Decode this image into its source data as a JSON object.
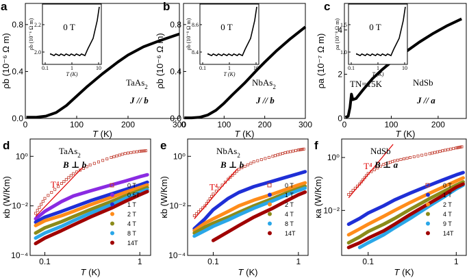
{
  "figure": {
    "panels_top": [
      {
        "letter": "a",
        "material": "TaAs",
        "sub": "2",
        "direction": "J // b",
        "ylabel": "ρb (10⁻⁶ Ω m)",
        "xlabel": "T (K)",
        "xticks": [
          "0",
          "100",
          "200",
          "300"
        ],
        "yticks": [
          "0.0",
          "0.4",
          "0.8"
        ],
        "inset": {
          "field": "0 T",
          "ylabel": "ρb (10⁻⁶ Ω m)",
          "xticks": [
            "0.1",
            "1",
            "10"
          ],
          "yticks": [
            "2.0",
            "2.2"
          ],
          "xlabel": "T (K)"
        }
      },
      {
        "letter": "b",
        "material": "NbAs",
        "sub": "2",
        "direction": "J // b",
        "ylabel": "ρb (10⁻⁶ Ω m)",
        "xlabel": "T (K)",
        "xticks": [
          "0",
          "100",
          "200",
          "300"
        ],
        "yticks": [
          "0.0",
          "0.4",
          "0.8"
        ],
        "inset": {
          "field": "0 T",
          "ylabel": "ρb (10⁻⁹ Ω m)",
          "xticks": [
            "0.1",
            "1",
            "10"
          ],
          "yticks": [
            "8.4",
            "8.6"
          ],
          "xlabel": "T (K)"
        }
      },
      {
        "letter": "c",
        "material": "NdSb",
        "sub": "",
        "direction": "J // a",
        "ylabel": "ρa (10⁻⁷ Ω m)",
        "xlabel": "T (K)",
        "xticks": [
          "0",
          "100",
          "200"
        ],
        "yticks": [
          "0",
          "2",
          "4"
        ],
        "annotation": "TN=15K",
        "inset": {
          "field": "0 T",
          "ylabel": "ρa (10⁻⁸ Ω m)",
          "xticks": [
            "0.1",
            "1",
            "10"
          ],
          "yticks": [
            "1.0",
            "1.5"
          ],
          "xlabel": "T (K)"
        }
      }
    ],
    "panels_bottom": [
      {
        "letter": "d",
        "material": "TaAs",
        "sub": "2",
        "field_dir": "B ⊥ b",
        "ylabel": "κb (W/Km)",
        "xlabel": "T (K)",
        "power": "T⁴",
        "xticks": [
          "0.1",
          "1"
        ],
        "yticks": [
          "10⁰",
          "10⁻²",
          "10⁻⁴"
        ],
        "legend": [
          "0 T",
          "0.5T",
          "1 T",
          "2 T",
          "4 T",
          "8 T",
          "14T"
        ]
      },
      {
        "letter": "e",
        "material": "NbAs",
        "sub": "2",
        "field_dir": "B ⊥ b",
        "ylabel": "κb (W/Km)",
        "xlabel": "T (K)",
        "power": "T⁴",
        "xticks": [
          "0.1",
          "1"
        ],
        "yticks": [
          "10⁰",
          "10⁻²",
          "10⁻⁴"
        ],
        "legend": [
          "0 T",
          "1 T",
          "2 T",
          "4 T",
          "8 T",
          "14T"
        ]
      },
      {
        "letter": "f",
        "material": "NdSb",
        "sub": "",
        "field_dir": "B ⊥ a",
        "ylabel": "κa (W/Km)",
        "xlabel": "T (K)",
        "power": "T⁴",
        "xticks": [
          "0.1",
          "1"
        ],
        "yticks": [
          "10⁰",
          "10⁻²"
        ],
        "legend": [
          "0 T",
          "1 T",
          "2 T",
          "4 T",
          "9 T",
          "14T"
        ]
      }
    ],
    "colors": {
      "zero": "#c0392b",
      "purple": "#8a2be2",
      "blue": "#1f2fd6",
      "orange": "#ff8c1a",
      "olive": "#8b8b1a",
      "cyan": "#2aa7e8",
      "darkred": "#a00000",
      "red": "#e00000"
    }
  },
  "chart_data": [
    {
      "type": "line",
      "title": "TaAs2 J // b",
      "xlabel": "T (K)",
      "ylabel": "ρb (10⁻⁶ Ω m)",
      "xlim": [
        0,
        300
      ],
      "ylim": [
        0,
        1.0
      ],
      "x": [
        2,
        20,
        40,
        60,
        80,
        100,
        120,
        150,
        180,
        200,
        230,
        260,
        300
      ],
      "series": [
        {
          "name": "ρb",
          "values": [
            0.01,
            0.01,
            0.02,
            0.05,
            0.11,
            0.19,
            0.27,
            0.38,
            0.48,
            0.54,
            0.61,
            0.66,
            0.72
          ]
        }
      ]
    },
    {
      "type": "line",
      "title": "NbAs2 J // b",
      "xlabel": "T (K)",
      "ylabel": "ρb (10⁻⁶ Ω m)",
      "xlim": [
        0,
        300
      ],
      "ylim": [
        0,
        1.0
      ],
      "x": [
        2,
        20,
        40,
        60,
        80,
        100,
        120,
        150,
        180,
        200,
        230,
        260,
        300
      ],
      "series": [
        {
          "name": "ρb",
          "values": [
            0.005,
            0.005,
            0.01,
            0.03,
            0.07,
            0.13,
            0.2,
            0.3,
            0.41,
            0.48,
            0.58,
            0.67,
            0.78
          ]
        }
      ]
    },
    {
      "type": "line",
      "title": "NdSb J // a",
      "xlabel": "T (K)",
      "ylabel": "ρa (10⁻⁷ Ω m)",
      "xlim": [
        0,
        260
      ],
      "ylim": [
        0,
        5.2
      ],
      "x": [
        2,
        8,
        12,
        15,
        18,
        25,
        40,
        60,
        80,
        100,
        130,
        160,
        190,
        220,
        250
      ],
      "series": [
        {
          "name": "ρa",
          "values": [
            0.05,
            0.1,
            0.5,
            1.1,
            0.85,
            0.9,
            1.3,
            1.8,
            2.2,
            2.55,
            3.0,
            3.45,
            3.85,
            4.2,
            4.5
          ]
        }
      ]
    },
    {
      "type": "scatter",
      "title": "TaAs2 B ⊥ b",
      "xlabel": "T (K)",
      "ylabel": "κb (W/Km)",
      "xscale": "log",
      "yscale": "log",
      "xlim": [
        0.07,
        1.3
      ],
      "ylim": [
        0.0001,
        5
      ],
      "x": [
        0.08,
        0.1,
        0.15,
        0.2,
        0.3,
        0.5,
        0.7,
        1.0,
        1.2
      ],
      "series": [
        {
          "name": "0 T",
          "values": [
            0.005,
            0.02,
            0.08,
            0.2,
            0.45,
            0.9,
            1.3,
            1.6,
            1.7
          ]
        },
        {
          "name": "0.5T",
          "values": [
            0.003,
            0.006,
            0.015,
            0.025,
            0.04,
            0.07,
            0.1,
            0.15,
            0.18
          ]
        },
        {
          "name": "1 T",
          "values": [
            0.0022,
            0.0035,
            0.006,
            0.009,
            0.016,
            0.03,
            0.045,
            0.07,
            0.09
          ]
        },
        {
          "name": "2 T",
          "values": [
            0.0016,
            0.0025,
            0.004,
            0.006,
            0.011,
            0.022,
            0.035,
            0.055,
            0.07
          ]
        },
        {
          "name": "4 T",
          "values": [
            0.0008,
            0.0013,
            0.0023,
            0.0037,
            0.007,
            0.015,
            0.025,
            0.042,
            0.055
          ]
        },
        {
          "name": "8 T",
          "values": [
            0.0005,
            0.0008,
            0.0015,
            0.0025,
            0.005,
            0.011,
            0.02,
            0.035,
            0.045
          ]
        },
        {
          "name": "14T",
          "values": [
            0.0003,
            0.0005,
            0.001,
            0.0017,
            0.0035,
            0.008,
            0.015,
            0.028,
            0.038
          ]
        }
      ]
    },
    {
      "type": "scatter",
      "title": "NbAs2 B ⊥ b",
      "xlabel": "T (K)",
      "ylabel": "κb (W/Km)",
      "xscale": "log",
      "yscale": "log",
      "xlim": [
        0.05,
        1.3
      ],
      "ylim": [
        0.0001,
        5
      ],
      "x": [
        0.06,
        0.08,
        0.1,
        0.15,
        0.2,
        0.3,
        0.5,
        0.7,
        1.0,
        1.2
      ],
      "series": [
        {
          "name": "0 T",
          "values": [
            0.004,
            0.01,
            0.03,
            0.12,
            0.3,
            0.6,
            1.0,
            1.4,
            1.8,
            2.0
          ]
        },
        {
          "name": "1 T",
          "values": [
            0.0012,
            0.003,
            0.007,
            0.02,
            0.035,
            0.06,
            0.1,
            0.14,
            0.2,
            0.24
          ]
        },
        {
          "name": "2 T",
          "values": [
            0.001,
            0.002,
            0.003,
            0.006,
            0.01,
            0.017,
            0.03,
            0.045,
            0.07,
            0.085
          ]
        },
        {
          "name": "4 T",
          "values": [
            0.0008,
            0.0014,
            0.002,
            0.0035,
            0.0055,
            0.01,
            0.02,
            0.032,
            0.05,
            0.062
          ]
        },
        {
          "name": "8 T",
          "values": [
            0.0006,
            0.001,
            0.0015,
            0.0027,
            0.0043,
            0.008,
            0.016,
            0.026,
            0.042,
            0.052
          ]
        },
        {
          "name": "14T",
          "values": [
            null,
            null,
            0.0004,
            0.0009,
            0.0016,
            0.0035,
            0.008,
            0.015,
            0.028,
            0.036
          ]
        }
      ]
    },
    {
      "type": "scatter",
      "title": "NdSb B ⊥ a",
      "xlabel": "T (K)",
      "ylabel": "κa (W/Km)",
      "xscale": "log",
      "yscale": "log",
      "xlim": [
        0.05,
        1.3
      ],
      "ylim": [
        0.0002,
        5
      ],
      "x": [
        0.06,
        0.08,
        0.1,
        0.15,
        0.2,
        0.3,
        0.5,
        0.7,
        1.0,
        1.2
      ],
      "series": [
        {
          "name": "0 T",
          "values": [
            0.04,
            0.1,
            0.25,
            0.55,
            0.75,
            1.0,
            1.4,
            1.8,
            2.3,
            2.6
          ]
        },
        {
          "name": "1 T",
          "values": [
            0.003,
            0.005,
            0.008,
            0.015,
            0.025,
            0.045,
            0.09,
            0.14,
            0.22,
            0.27
          ]
        },
        {
          "name": "2 T",
          "values": [
            0.0012,
            0.002,
            0.003,
            0.006,
            0.01,
            0.02,
            0.045,
            0.075,
            0.13,
            0.17
          ]
        },
        {
          "name": "4 T",
          "values": [
            0.0006,
            0.001,
            0.0016,
            0.003,
            0.005,
            0.011,
            0.028,
            0.05,
            0.09,
            0.12
          ]
        },
        {
          "name": "9 T",
          "values": [
            null,
            0.0004,
            0.0006,
            0.0012,
            0.0022,
            0.005,
            0.015,
            0.03,
            0.065,
            0.09
          ]
        },
        {
          "name": "14T",
          "values": [
            0.0004,
            0.0006,
            0.0009,
            0.0017,
            0.003,
            0.007,
            0.019,
            0.036,
            0.075,
            0.1
          ]
        }
      ]
    }
  ]
}
